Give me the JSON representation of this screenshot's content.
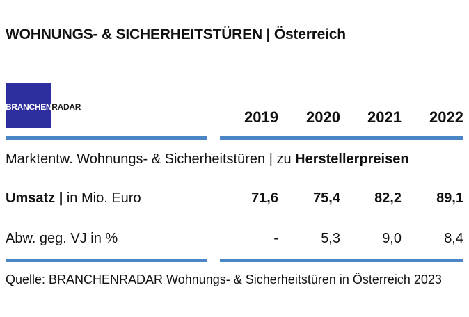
{
  "title": {
    "bold": "WOHNUNGS- & SICHERHEITSTÜREN",
    "rest": " | Österreich"
  },
  "logo": {
    "main": "BRANCHEN",
    "tail": "RADAR",
    "overlay": "BRANCHEN"
  },
  "years": [
    "2019",
    "2020",
    "2021",
    "2022"
  ],
  "subtitle": {
    "prefix": "Marktentw. Wohnungs- & Sicherheitstüren | zu ",
    "bold": "Herstellerpreisen"
  },
  "rows": [
    {
      "label_bold": "Umsatz |",
      "label_rest": " in Mio. Euro",
      "values": [
        "71,6",
        "75,4",
        "82,2",
        "89,1"
      ]
    },
    {
      "label_bold": "",
      "label_rest": "Abw. geg. VJ in %",
      "values": [
        "-",
        "5,3",
        "9,0",
        "8,4"
      ]
    }
  ],
  "source": "Quelle: BRANCHENRADAR Wohnungs- & Sicherheitstüren in Österreich 2023",
  "colors": {
    "rule": "#4a86c5",
    "logo_bg": "#2f2ea0"
  }
}
